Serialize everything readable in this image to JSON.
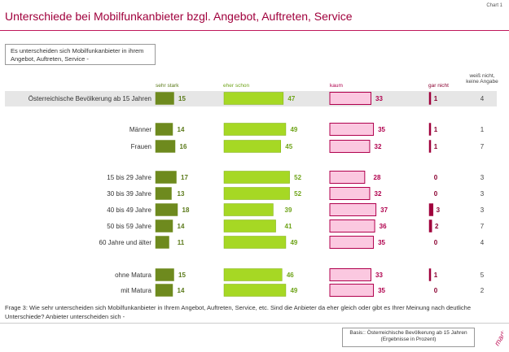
{
  "chart_number": "Chart 1",
  "title": "Unterschiede bei Mobilfunkanbieter bzgl. Angebot, Auftreten, Service",
  "question_box": "Es unterscheiden sich Mobilfunkanbieter in ihrem Angebot, Auftreten, Service -",
  "colors": {
    "accent": "#a0003c",
    "sehr_stark": "#6e8a1e",
    "eher_schon": "#a6d824",
    "kaum": "#fbc8e0",
    "kaum_border": "#b0004d",
    "gar_nicht": "#a0003c",
    "highlight_row": "#e6e6e6"
  },
  "chart_data": {
    "type": "bar",
    "stacked": false,
    "series": [
      {
        "name": "sehr stark",
        "values": [
          15,
          14,
          16,
          17,
          13,
          18,
          14,
          11,
          15,
          14
        ]
      },
      {
        "name": "eher schon",
        "values": [
          47,
          49,
          45,
          52,
          52,
          39,
          41,
          49,
          46,
          49
        ]
      },
      {
        "name": "kaum",
        "values": [
          33,
          35,
          32,
          28,
          32,
          37,
          36,
          35,
          33,
          35
        ]
      },
      {
        "name": "gar nicht",
        "values": [
          1,
          1,
          1,
          0,
          0,
          3,
          2,
          0,
          1,
          0
        ]
      },
      {
        "name": "weiß nicht, keine Angabe",
        "values": [
          4,
          1,
          7,
          3,
          3,
          3,
          7,
          4,
          5,
          2
        ]
      }
    ],
    "categories": [
      "Österreichische Bevölkerung ab 15 Jahren",
      "Männer",
      "Frauen",
      "15 bis 29 Jahre",
      "30 bis 39 Jahre",
      "40 bis 49 Jahre",
      "50 bis 59 Jahre",
      "60 Jahre und älter",
      "ohne Matura",
      "mit Matura"
    ],
    "unit": "Prozent"
  },
  "headers": {
    "sehr_stark": "sehr stark",
    "eher_schon": "eher schon",
    "kaum": "kaum",
    "gar_nicht": "gar nicht",
    "weiss_nicht_1": "weiß nicht,",
    "weiss_nicht_2": "keine Angabe"
  },
  "footer": {
    "question": "Frage  3:   Wie sehr unterscheiden sich Mobilfunkanbieter in Ihrem Angebot, Auftreten, Service, etc. Sind die Anbieter da eher gleich oder gibt es Ihrer Meinung nach deutliche Unterschiede? Anbieter unterscheiden sich -",
    "basis_line1": "Basis:: Österreichische Bevölkerung ab 15 Jahren",
    "basis_line2": "(Ergebnisse in Prozent)",
    "logo_text": "market",
    "logo_subtext": "INSTITUT"
  }
}
